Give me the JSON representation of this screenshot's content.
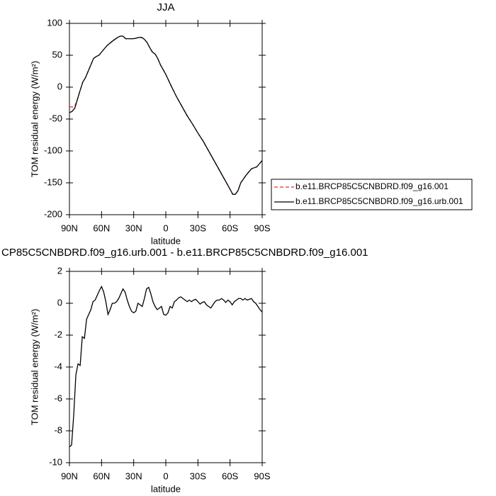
{
  "chart_data": [
    {
      "type": "line",
      "title": "JJA",
      "xlabel": "latitude",
      "ylabel": "TOM residual energy (W/m²)",
      "xlim": [
        90,
        -90
      ],
      "xticks": [
        {
          "value": 90,
          "label": "90N"
        },
        {
          "value": 60,
          "label": "60N"
        },
        {
          "value": 30,
          "label": "30N"
        },
        0,
        {
          "value": -30,
          "label": "30S"
        },
        {
          "value": -60,
          "label": "60S"
        },
        {
          "value": -90,
          "label": "90S"
        }
      ],
      "ylim": [
        -200,
        100
      ],
      "yticks": [
        -200,
        -150,
        -100,
        -50,
        0,
        50,
        100
      ],
      "legend": "right",
      "x": [
        90,
        87.5,
        85,
        82.5,
        80,
        77.5,
        75,
        72.5,
        70,
        67.5,
        65,
        62.5,
        60,
        57.5,
        55,
        50,
        45,
        42.5,
        40,
        37.5,
        35,
        30,
        27.5,
        25,
        22.5,
        20,
        17.5,
        15,
        12.5,
        10,
        7.5,
        5,
        0,
        -5,
        -10,
        -15,
        -20,
        -25,
        -30,
        -35,
        -40,
        -45,
        -50,
        -55,
        -60,
        -62.5,
        -65,
        -67.5,
        -70,
        -75,
        -80,
        -85,
        -90
      ],
      "series": [
        {
          "name": "b.e11.BRCP85C5CNBDRD.f09_g16.001",
          "color": "#e0302a",
          "line_style": "dashed",
          "values": [
            -31,
            -31,
            -30,
            -19,
            -5,
            8,
            15,
            25,
            35,
            45,
            48,
            50,
            55,
            60,
            65,
            72,
            78,
            80,
            80,
            76,
            76,
            76,
            77,
            78,
            78,
            75,
            70,
            62,
            55,
            52,
            45,
            35,
            20,
            2,
            -15,
            -30,
            -45,
            -58,
            -72,
            -85,
            -100,
            -115,
            -130,
            -145,
            -160,
            -168,
            -168,
            -162,
            -150,
            -138,
            -128,
            -125,
            -115
          ]
        },
        {
          "name": "b.e11.BRCP85C5CNBDRD.f09_g16.urb.001",
          "color": "#000000",
          "line_style": "solid",
          "values": [
            -40,
            -38,
            -33,
            -19,
            -5,
            8,
            15,
            25,
            35,
            45,
            48,
            50,
            55,
            60,
            65,
            72,
            78,
            80,
            80,
            76,
            76,
            76,
            77,
            78,
            78,
            75,
            70,
            62,
            55,
            52,
            45,
            35,
            20,
            2,
            -15,
            -30,
            -45,
            -58,
            -72,
            -85,
            -100,
            -115,
            -130,
            -145,
            -160,
            -168,
            -168,
            -162,
            -150,
            -138,
            -128,
            -125,
            -115
          ]
        }
      ]
    },
    {
      "type": "line",
      "title": "CP85C5CNBDRD.f09_g16.urb.001 - b.e11.BRCP85C5CNBDRD.f09_g16.001",
      "xlabel": "latitude",
      "ylabel": "TOM residual energy (W/m²)",
      "xlim": [
        90,
        -90
      ],
      "xticks": [
        {
          "value": 90,
          "label": "90N"
        },
        {
          "value": 60,
          "label": "60N"
        },
        {
          "value": 30,
          "label": "30N"
        },
        0,
        {
          "value": -30,
          "label": "30S"
        },
        {
          "value": -60,
          "label": "60S"
        },
        {
          "value": -90,
          "label": "90S"
        }
      ],
      "ylim": [
        -10,
        2
      ],
      "yticks": [
        -10,
        -8,
        -6,
        -4,
        -2,
        0,
        2
      ],
      "x": [
        90,
        88,
        86,
        84,
        82,
        80,
        78,
        76,
        74,
        72,
        70,
        68,
        66,
        64,
        62,
        60,
        58,
        56,
        54,
        52,
        50,
        48,
        46,
        44,
        42,
        40,
        38,
        36,
        34,
        32,
        30,
        28,
        26,
        24,
        22,
        20,
        18,
        16,
        14,
        12,
        10,
        8,
        6,
        4,
        2,
        0,
        -2,
        -4,
        -6,
        -8,
        -10,
        -12,
        -14,
        -16,
        -18,
        -20,
        -22,
        -24,
        -26,
        -28,
        -30,
        -32,
        -34,
        -36,
        -38,
        -40,
        -42,
        -44,
        -46,
        -48,
        -50,
        -52,
        -54,
        -56,
        -58,
        -60,
        -62,
        -64,
        -66,
        -68,
        -70,
        -72,
        -74,
        -76,
        -78,
        -80,
        -82,
        -84,
        -86,
        -88,
        -90
      ],
      "series": [
        {
          "color": "#000000",
          "values": [
            -9,
            -8.9,
            -7,
            -4.5,
            -3.8,
            -3.9,
            -2.1,
            -2.2,
            -1,
            -0.7,
            -0.4,
            0.1,
            0.2,
            0.5,
            0.8,
            1.05,
            0.7,
            0.1,
            -0.7,
            -0.4,
            0,
            0,
            0.1,
            0.3,
            0.6,
            0.9,
            0.7,
            0.2,
            -0.2,
            -0.5,
            -0.6,
            -0.5,
            0,
            -0.1,
            -0.2,
            0.3,
            0.9,
            1.0,
            0.6,
            0.1,
            -0.2,
            -0.4,
            -0.3,
            -0.2,
            -0.7,
            -0.75,
            -0.6,
            -0.2,
            -0.3,
            0.1,
            0.2,
            0.35,
            0.4,
            0.3,
            0.2,
            0.1,
            0.2,
            0.1,
            0.2,
            0.25,
            0.1,
            -0.05,
            0.05,
            0.1,
            -0.1,
            -0.2,
            -0.3,
            -0.1,
            0.1,
            0.2,
            0.2,
            0.3,
            0.2,
            0.05,
            0.2,
            0.1,
            -0.1,
            0.1,
            0.2,
            0.3,
            0.3,
            0.2,
            0.3,
            0.2,
            0.25,
            0.3,
            0.1,
            0,
            -0.2,
            -0.4,
            -0.55
          ]
        }
      ]
    }
  ]
}
